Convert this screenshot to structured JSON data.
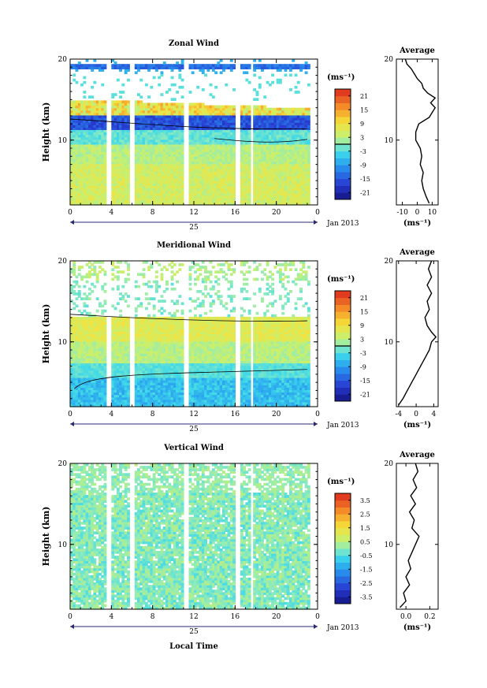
{
  "figure": {
    "xlabel": "Local Time",
    "date_label": "Jan 2013",
    "day_label": "25"
  },
  "chart_data": [
    {
      "type": "heatmap",
      "title": "Zonal Wind",
      "ylabel": "Height (km)",
      "xlabel": "Local Time",
      "x_ticks": [
        "0",
        "4",
        "8",
        "12",
        "16",
        "20",
        "0"
      ],
      "y_ticks": [
        "10",
        "20"
      ],
      "xlim": [
        0,
        24
      ],
      "ylim": [
        2,
        20
      ],
      "colorbar": {
        "unit": "(ms⁻¹)",
        "ticks": [
          "21",
          "15",
          "9",
          "3",
          "-3",
          "-9",
          "-15",
          "-21"
        ],
        "range": [
          -24,
          24
        ],
        "zero_line": 0
      },
      "data_gaps_local_time": [
        [
          3.5,
          3.9
        ],
        [
          5.8,
          6.2
        ],
        [
          11.0,
          11.4
        ],
        [
          16.0,
          16.5
        ],
        [
          17.4,
          17.8
        ]
      ],
      "profile": {
        "title": "Average",
        "xlabel": "(ms⁻¹)",
        "x_ticks": [
          "-10",
          "0",
          "10"
        ],
        "xlim": [
          -14,
          14
        ],
        "y_ticks": [
          "10",
          "20"
        ],
        "height_km": [
          2.2,
          3,
          4,
          5,
          6,
          7,
          8,
          9,
          10,
          11,
          12,
          12.8,
          13.4,
          14,
          14.6,
          15.2,
          15.8,
          16.4,
          17,
          17.6,
          18.2,
          18.8,
          19.4,
          20
        ],
        "values": [
          8,
          6,
          4,
          3,
          4,
          2,
          3,
          2,
          -1,
          -1,
          1,
          8,
          10,
          12,
          9,
          12,
          7,
          4,
          3,
          0,
          -2,
          -4,
          -7,
          -8
        ]
      }
    },
    {
      "type": "heatmap",
      "title": "Meridional Wind",
      "ylabel": "Height (km)",
      "xlabel": "Local Time",
      "x_ticks": [
        "0",
        "4",
        "8",
        "12",
        "16",
        "20",
        "0"
      ],
      "y_ticks": [
        "10",
        "20"
      ],
      "xlim": [
        0,
        24
      ],
      "ylim": [
        2,
        20
      ],
      "colorbar": {
        "unit": "(ms⁻¹)",
        "ticks": [
          "21",
          "15",
          "9",
          "3",
          "-3",
          "-9",
          "-15",
          "-21"
        ],
        "range": [
          -24,
          24
        ],
        "zero_line": 0
      },
      "data_gaps_local_time": [
        [
          3.5,
          3.9
        ],
        [
          5.8,
          6.2
        ],
        [
          11.0,
          11.4
        ],
        [
          16.0,
          16.5
        ],
        [
          17.4,
          17.8
        ]
      ],
      "profile": {
        "title": "Average",
        "xlabel": "(ms⁻¹)",
        "x_ticks": [
          "-4",
          "0",
          "4"
        ],
        "xlim": [
          -4.5,
          5
        ],
        "y_ticks": [
          "10",
          "20"
        ],
        "height_km": [
          2.2,
          3,
          4,
          5,
          6,
          7,
          8,
          9,
          10,
          10.6,
          11.2,
          12,
          13,
          14,
          15,
          16,
          17,
          18,
          19,
          20
        ],
        "values": [
          -4,
          -3,
          -2,
          -1,
          0,
          1,
          2,
          3,
          3.5,
          4.5,
          3.5,
          2.5,
          2,
          3,
          2.5,
          3.5,
          2.5,
          3.5,
          2.8,
          3.5
        ]
      }
    },
    {
      "type": "heatmap",
      "title": "Vertical Wind",
      "ylabel": "Height (km)",
      "xlabel": "Local Time",
      "x_ticks": [
        "0",
        "4",
        "8",
        "12",
        "16",
        "20",
        "0"
      ],
      "y_ticks": [
        "10",
        "20"
      ],
      "xlim": [
        0,
        24
      ],
      "ylim": [
        2,
        20
      ],
      "colorbar": {
        "unit": "(ms⁻¹)",
        "ticks": [
          "3.5",
          "2.5",
          "1.5",
          "0.5",
          "-0.5",
          "-1.5",
          "-2.5",
          "-3.5"
        ],
        "range": [
          -4,
          4
        ],
        "zero_line": null
      },
      "data_gaps_local_time": [
        [
          3.5,
          3.9
        ],
        [
          5.8,
          6.2
        ],
        [
          11.0,
          11.4
        ],
        [
          16.0,
          16.5
        ],
        [
          17.4,
          17.8
        ]
      ],
      "profile": {
        "title": "Average",
        "xlabel": "(ms⁻¹)",
        "x_ticks": [
          "0.0",
          "0.2"
        ],
        "xlim": [
          -0.08,
          0.27
        ],
        "y_ticks": [
          "10",
          "20"
        ],
        "height_km": [
          2.2,
          3,
          4,
          5,
          6,
          7,
          8,
          9,
          10,
          11,
          12,
          13,
          14,
          15,
          16,
          17,
          18,
          19,
          20
        ],
        "values": [
          -0.05,
          0.0,
          -0.02,
          0.03,
          0.0,
          0.04,
          0.02,
          0.05,
          0.08,
          0.11,
          0.05,
          0.07,
          0.03,
          0.08,
          0.04,
          0.09,
          0.06,
          0.1,
          0.08
        ]
      }
    }
  ]
}
